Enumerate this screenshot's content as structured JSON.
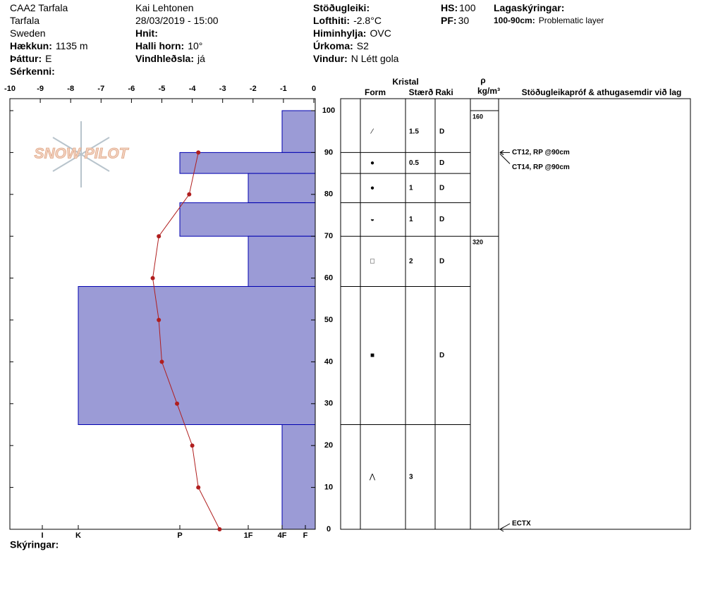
{
  "header": {
    "columns": [
      {
        "items": [
          {
            "text": "CAA2 Tarfala"
          },
          {
            "text": "Tarfala"
          },
          {
            "text": "Sweden"
          },
          {
            "label": "Hækkun:",
            "text": "1135 m"
          },
          {
            "label": "Þáttur:",
            "text": "E"
          },
          {
            "label": "Sérkenni:"
          }
        ]
      },
      {
        "items": [
          {
            "text": "Kai Lehtonen"
          },
          {
            "text": "28/03/2019 - 15:00"
          },
          {
            "label": "Hnit:"
          },
          {
            "label": "Halli horn:",
            "text": "10°"
          },
          {
            "label": "Vindhleðsla:",
            "text": "já"
          }
        ]
      },
      {
        "items": [
          {
            "label": "Stöðugleiki:"
          },
          {
            "label": "Lofthiti:",
            "text": "-2.8°C"
          },
          {
            "label": "Himinhylja:",
            "text": "OVC"
          },
          {
            "label": "Úrkoma:",
            "text": "S2"
          },
          {
            "label": "Vindur:",
            "text": "N Létt gola"
          }
        ]
      },
      {
        "items": [
          {
            "label": "HS:",
            "text": "100"
          },
          {
            "label": "PF:",
            "text": "30"
          }
        ]
      },
      {
        "items": [
          {
            "label": "Lagaskýringar:"
          },
          {
            "label": "100-90cm:",
            "text": "Problematic layer"
          }
        ]
      }
    ]
  },
  "logo": "SNOW PILOT",
  "footer": "Skýringar:",
  "chart_data": {
    "type": "snowpit",
    "xlim": [
      -10,
      0
    ],
    "xticks": [
      -10,
      -9,
      -8,
      -7,
      -6,
      -5,
      -4,
      -3,
      -2,
      -1,
      0
    ],
    "ylim": [
      0,
      100
    ],
    "yticks": [
      0,
      10,
      20,
      30,
      40,
      50,
      60,
      70,
      80,
      90,
      100
    ],
    "hardness_ticks": [
      {
        "value": 6,
        "label": "I"
      },
      {
        "value": 5,
        "label": "K"
      },
      {
        "value": 4,
        "label": "P"
      },
      {
        "value": 3,
        "label": "1F"
      },
      {
        "value": 2,
        "label": "4F"
      },
      {
        "value": 1,
        "label": "F"
      }
    ],
    "bar_color": "#9b9bd6",
    "bar_edge": "#0000b0",
    "temperature_profile": {
      "color": "#b01e1e",
      "x": [
        -3.8,
        -4.1,
        -5.1,
        -5.3,
        -5.1,
        -5.0,
        -4.5,
        -4.0,
        -3.8,
        -3.1
      ],
      "y": [
        90,
        80,
        70,
        60,
        50,
        40,
        30,
        20,
        10,
        0
      ]
    },
    "columns": {
      "crystal": "Kristal",
      "form": "Form",
      "size": "Stærð",
      "moisture": "Raki",
      "density_symbol": "ρ",
      "density_unit": "kg/m³",
      "comments": "Stöðugleikapróf & athugasemdir við lag"
    },
    "layers": [
      {
        "top": 100,
        "bottom": 90,
        "hardness": 2,
        "form": "⁄",
        "size": 1.5,
        "moisture": "D"
      },
      {
        "top": 90,
        "bottom": 85,
        "hardness": 4,
        "form": "●",
        "size": 0.5,
        "moisture": "D"
      },
      {
        "top": 85,
        "bottom": 78,
        "hardness": 3,
        "form": "●",
        "size": 1,
        "moisture": "D"
      },
      {
        "top": 78,
        "bottom": 70,
        "hardness": 4,
        "form": "◒",
        "size": 1,
        "moisture": "D"
      },
      {
        "top": 70,
        "bottom": 58,
        "hardness": 3,
        "form": "□",
        "size": 2,
        "moisture": "D"
      },
      {
        "top": 58,
        "bottom": 25,
        "hardness": 5,
        "form": "■",
        "moisture": "D"
      },
      {
        "top": 25,
        "bottom": 0,
        "hardness": 2,
        "form": "⋀",
        "size": 3
      }
    ],
    "density": [
      {
        "depth": 100,
        "value": 160
      },
      {
        "depth": 70,
        "value": 320
      }
    ],
    "comments": [
      {
        "depth": 90,
        "text": "CT12, RP @90cm"
      },
      {
        "depth": 90,
        "text": "CT14, RP @90cm"
      },
      {
        "depth": 0,
        "text": "ECTX"
      }
    ]
  }
}
